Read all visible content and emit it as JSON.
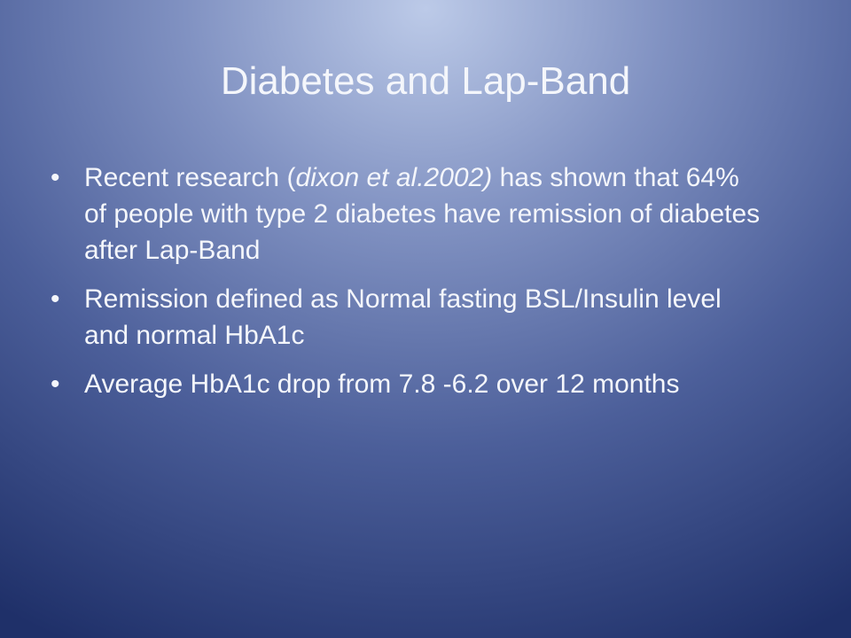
{
  "slide": {
    "title": "Diabetes and Lap-Band",
    "bullets": [
      {
        "before": "Recent research (",
        "emphasis": "dixon et al.2002)",
        "after": " has shown that 64% of people with type 2 diabetes have remission of diabetes after Lap-Band"
      },
      {
        "text": "Remission defined as Normal fasting BSL/Insulin level and normal HbA1c"
      },
      {
        "text": "Average HbA1c drop from 7.8 -6.2 over 12 months"
      }
    ]
  }
}
